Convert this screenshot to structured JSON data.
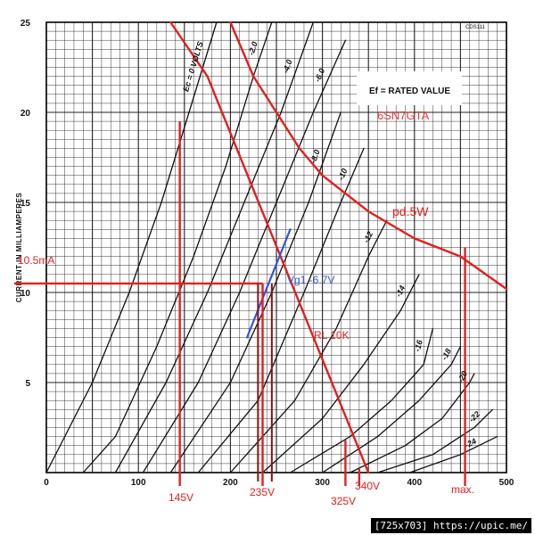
{
  "chart_data": {
    "type": "line",
    "title": "6SN7GTA",
    "xlim": [
      0,
      500
    ],
    "ylim": [
      0,
      25
    ],
    "ylabel": "CURRENT IN MILLIAMPERES",
    "x_ticks": [
      0,
      100,
      200,
      300,
      400,
      500
    ],
    "y_ticks": [
      5,
      10,
      15,
      20,
      25
    ],
    "grid": true,
    "header_text": "Ef = RATED VALUE",
    "corner_code": "CDS111",
    "series": [
      {
        "name": "Ec = 0 VOLTS",
        "label": "Ec = 0 VOLTS",
        "points": [
          [
            0,
            0
          ],
          [
            50,
            5
          ],
          [
            90,
            10
          ],
          [
            125,
            15
          ],
          [
            155,
            20
          ],
          [
            185,
            25
          ]
        ]
      },
      {
        "name": "-2.0",
        "label": "-2.0",
        "points": [
          [
            40,
            0
          ],
          [
            75,
            2
          ],
          [
            120,
            7
          ],
          [
            160,
            12
          ],
          [
            195,
            17
          ],
          [
            225,
            22
          ],
          [
            245,
            25
          ]
        ]
      },
      {
        "name": "-4.0",
        "label": "-4.0",
        "points": [
          [
            75,
            0
          ],
          [
            130,
            5
          ],
          [
            175,
            10
          ],
          [
            215,
            15
          ],
          [
            255,
            20
          ],
          [
            290,
            25
          ]
        ]
      },
      {
        "name": "-6.0",
        "label": "-6.0",
        "points": [
          [
            105,
            0
          ],
          [
            165,
            5
          ],
          [
            210,
            10
          ],
          [
            250,
            15
          ],
          [
            290,
            20
          ],
          [
            325,
            24
          ]
        ]
      },
      {
        "name": "-8.0",
        "label": "-8.0",
        "points": [
          [
            135,
            0
          ],
          [
            200,
            5
          ],
          [
            245,
            10
          ],
          [
            285,
            15
          ],
          [
            320,
            20
          ]
        ]
      },
      {
        "name": "-10",
        "label": "-10",
        "points": [
          [
            165,
            0
          ],
          [
            230,
            4
          ],
          [
            280,
            10
          ],
          [
            320,
            15
          ],
          [
            345,
            18
          ]
        ]
      },
      {
        "name": "-12",
        "label": "-12",
        "points": [
          [
            200,
            0
          ],
          [
            270,
            4
          ],
          [
            315,
            8
          ],
          [
            350,
            12
          ],
          [
            370,
            14
          ]
        ]
      },
      {
        "name": "-14",
        "label": "-14",
        "points": [
          [
            235,
            0
          ],
          [
            300,
            3
          ],
          [
            345,
            6
          ],
          [
            385,
            9
          ],
          [
            405,
            11
          ]
        ]
      },
      {
        "name": "-16",
        "label": "-16",
        "points": [
          [
            265,
            0
          ],
          [
            330,
            2
          ],
          [
            375,
            4
          ],
          [
            410,
            6
          ],
          [
            420,
            8
          ]
        ]
      },
      {
        "name": "-18",
        "label": "-18",
        "points": [
          [
            300,
            0
          ],
          [
            360,
            2
          ],
          [
            405,
            4
          ],
          [
            440,
            6
          ],
          [
            450,
            7
          ]
        ]
      },
      {
        "name": "-20",
        "label": "-20",
        "points": [
          [
            330,
            0
          ],
          [
            390,
            1.5
          ],
          [
            430,
            3
          ],
          [
            460,
            5
          ],
          [
            465,
            5.5
          ]
        ]
      },
      {
        "name": "-22",
        "label": "-22",
        "points": [
          [
            360,
            0
          ],
          [
            420,
            1
          ],
          [
            465,
            2.5
          ],
          [
            485,
            3.5
          ]
        ]
      },
      {
        "name": "-24",
        "label": "-24",
        "points": [
          [
            395,
            0
          ],
          [
            450,
            1
          ],
          [
            490,
            2
          ]
        ]
      }
    ],
    "overlays": {
      "load_line": {
        "label": "RL 10K",
        "points": [
          [
            135,
            25
          ],
          [
            175,
            22
          ],
          [
            350,
            0
          ]
        ]
      },
      "plate_dissipation": {
        "label": "pd.5W",
        "points": [
          [
            200,
            25
          ],
          [
            225,
            22
          ],
          [
            250,
            20
          ],
          [
            275,
            18
          ],
          [
            300,
            16.5
          ],
          [
            350,
            14.5
          ],
          [
            400,
            13
          ],
          [
            450,
            12
          ],
          [
            500,
            10.2
          ]
        ]
      },
      "bias_line": {
        "label": "Vg1 -6.7V",
        "points": [
          [
            218,
            7.5
          ],
          [
            265,
            13.5
          ]
        ]
      },
      "current_marker": {
        "label": "10.5mA",
        "value": 10.5
      },
      "voltage_markers": [
        {
          "label": "145V",
          "value": 145
        },
        {
          "label": "235V",
          "value": 235
        },
        {
          "label": "325V",
          "value": 325
        },
        {
          "label": "340V",
          "value": 340
        },
        {
          "label": "max.",
          "value": 455
        }
      ],
      "minor_markers": [
        230,
        245
      ]
    }
  },
  "watermark": "[725x703] https://upic.me/"
}
